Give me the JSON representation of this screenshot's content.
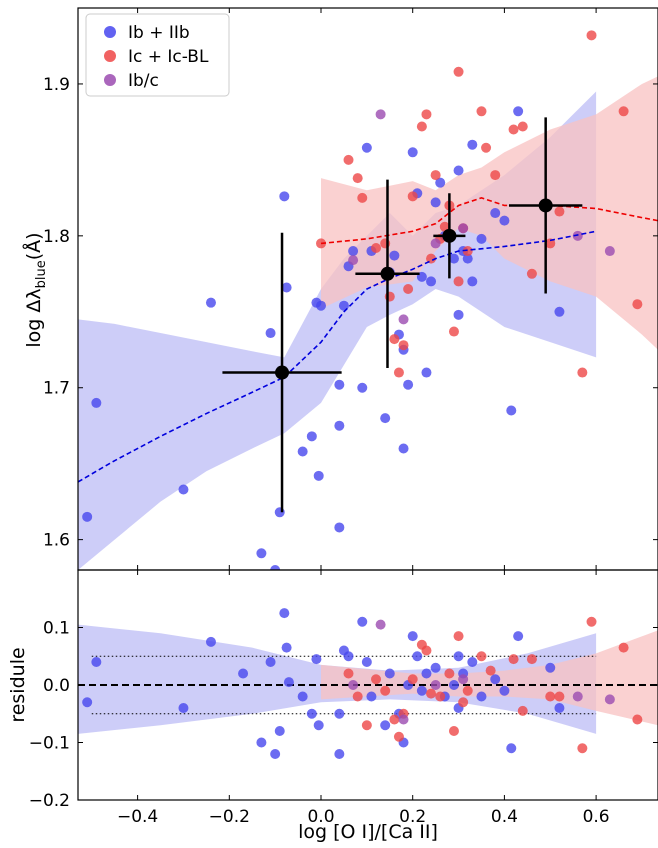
{
  "chart_data": {
    "type": "scatter",
    "colors": {
      "ib_iib": "#4747ee",
      "ic_icbl": "#ee4747",
      "ibc": "#9b4bb0",
      "band_blue": "#c4c4f7",
      "band_red": "#f8c2c2"
    },
    "x_ticks": [
      "−0.4",
      "−0.2",
      "0.0",
      "0.2",
      "0.4",
      "0.6"
    ],
    "x_tick_values": [
      -0.4,
      -0.2,
      0.0,
      0.2,
      0.4,
      0.6
    ],
    "xlim": [
      -0.53,
      0.735
    ],
    "top_panel": {
      "ylim": [
        1.58,
        1.95
      ],
      "y_ticks": [
        "1.6",
        "1.7",
        "1.8",
        "1.9"
      ],
      "y_tick_values": [
        1.6,
        1.7,
        1.8,
        1.9
      ],
      "legend_placement": "top-left",
      "series": [
        {
          "name": "Ib + IIb",
          "color_key": "ib_iib",
          "points": [
            [
              -0.51,
              1.615
            ],
            [
              -0.49,
              1.69
            ],
            [
              -0.3,
              1.633
            ],
            [
              -0.24,
              1.756
            ],
            [
              -0.13,
              1.591
            ],
            [
              -0.11,
              1.736
            ],
            [
              -0.1,
              1.58
            ],
            [
              -0.09,
              1.618
            ],
            [
              -0.08,
              1.826
            ],
            [
              -0.075,
              1.766
            ],
            [
              -0.04,
              1.658
            ],
            [
              -0.02,
              1.668
            ],
            [
              -0.01,
              1.756
            ],
            [
              -0.005,
              1.642
            ],
            [
              0.0,
              1.754
            ],
            [
              0.04,
              1.702
            ],
            [
              0.04,
              1.675
            ],
            [
              0.04,
              1.608
            ],
            [
              0.05,
              1.754
            ],
            [
              0.06,
              1.78
            ],
            [
              0.07,
              1.79
            ],
            [
              0.09,
              1.7
            ],
            [
              0.1,
              1.858
            ],
            [
              0.11,
              1.79
            ],
            [
              0.14,
              1.68
            ],
            [
              0.15,
              1.776
            ],
            [
              0.16,
              1.787
            ],
            [
              0.17,
              1.735
            ],
            [
              0.18,
              1.725
            ],
            [
              0.18,
              1.66
            ],
            [
              0.19,
              1.702
            ],
            [
              0.2,
              1.855
            ],
            [
              0.21,
              1.828
            ],
            [
              0.22,
              1.773
            ],
            [
              0.23,
              1.71
            ],
            [
              0.24,
              1.77
            ],
            [
              0.25,
              1.822
            ],
            [
              0.26,
              1.835
            ],
            [
              0.27,
              1.8
            ],
            [
              0.29,
              1.785
            ],
            [
              0.3,
              1.748
            ],
            [
              0.3,
              1.843
            ],
            [
              0.31,
              1.79
            ],
            [
              0.32,
              1.785
            ],
            [
              0.33,
              1.77
            ],
            [
              0.33,
              1.86
            ],
            [
              0.35,
              1.798
            ],
            [
              0.38,
              1.815
            ],
            [
              0.4,
              1.81
            ],
            [
              0.415,
              1.685
            ],
            [
              0.43,
              1.882
            ],
            [
              0.52,
              1.75
            ]
          ]
        },
        {
          "name": "Ic + Ic-BL",
          "color_key": "ic_icbl",
          "points": [
            [
              0.0,
              1.795
            ],
            [
              0.06,
              1.85
            ],
            [
              0.08,
              1.838
            ],
            [
              0.09,
              1.825
            ],
            [
              0.12,
              1.792
            ],
            [
              0.14,
              1.795
            ],
            [
              0.15,
              1.76
            ],
            [
              0.16,
              1.732
            ],
            [
              0.17,
              1.71
            ],
            [
              0.18,
              1.728
            ],
            [
              0.19,
              1.765
            ],
            [
              0.2,
              1.826
            ],
            [
              0.22,
              1.872
            ],
            [
              0.23,
              1.88
            ],
            [
              0.24,
              1.785
            ],
            [
              0.25,
              1.84
            ],
            [
              0.26,
              1.798
            ],
            [
              0.27,
              1.806
            ],
            [
              0.28,
              1.82
            ],
            [
              0.29,
              1.737
            ],
            [
              0.3,
              1.77
            ],
            [
              0.3,
              1.908
            ],
            [
              0.31,
              1.805
            ],
            [
              0.32,
              1.79
            ],
            [
              0.35,
              1.882
            ],
            [
              0.36,
              1.858
            ],
            [
              0.38,
              1.84
            ],
            [
              0.42,
              1.87
            ],
            [
              0.44,
              1.872
            ],
            [
              0.46,
              1.775
            ],
            [
              0.5,
              1.795
            ],
            [
              0.52,
              1.816
            ],
            [
              0.57,
              1.71
            ],
            [
              0.59,
              1.932
            ],
            [
              0.66,
              1.882
            ],
            [
              0.69,
              1.755
            ]
          ]
        },
        {
          "name": "Ib/c",
          "color_key": "ibc",
          "points": [
            [
              0.07,
              1.784
            ],
            [
              0.13,
              1.88
            ],
            [
              0.18,
              1.745
            ],
            [
              0.25,
              1.795
            ],
            [
              0.31,
              1.805
            ],
            [
              0.56,
              1.8
            ],
            [
              0.63,
              1.79
            ]
          ]
        }
      ],
      "binned_means": [
        {
          "x": -0.085,
          "y": 1.71,
          "xerr": 0.13,
          "yerr": 0.092
        },
        {
          "x": 0.145,
          "y": 1.775,
          "xerr": 0.07,
          "yerr": 0.062
        },
        {
          "x": 0.28,
          "y": 1.8,
          "xerr": 0.035,
          "yerr": 0.028
        },
        {
          "x": 0.49,
          "y": 1.82,
          "xerr": 0.08,
          "yerr": 0.058
        }
      ],
      "trend_blue": {
        "x": [
          -0.53,
          -0.45,
          -0.35,
          -0.25,
          -0.15,
          -0.08,
          0.0,
          0.05,
          0.1,
          0.15,
          0.2,
          0.25,
          0.3,
          0.4,
          0.5,
          0.6
        ],
        "y": [
          1.638,
          1.652,
          1.668,
          1.683,
          1.697,
          1.707,
          1.73,
          1.75,
          1.765,
          1.772,
          1.778,
          1.785,
          1.79,
          1.793,
          1.797,
          1.803
        ],
        "lo": [
          1.58,
          1.6,
          1.625,
          1.645,
          1.66,
          1.67,
          1.69,
          1.715,
          1.74,
          1.748,
          1.755,
          1.765,
          1.76,
          1.74,
          1.73,
          1.72
        ],
        "hi": [
          1.745,
          1.742,
          1.736,
          1.73,
          1.724,
          1.72,
          1.765,
          1.785,
          1.8,
          1.815,
          1.8,
          1.815,
          1.82,
          1.84,
          1.865,
          1.895
        ]
      },
      "trend_red": {
        "x": [
          0.0,
          0.1,
          0.2,
          0.25,
          0.3,
          0.35,
          0.4,
          0.5,
          0.6,
          0.7,
          0.735
        ],
        "y": [
          1.795,
          1.798,
          1.803,
          1.808,
          1.82,
          1.825,
          1.82,
          1.82,
          1.818,
          1.812,
          1.81
        ],
        "lo": [
          1.752,
          1.766,
          1.77,
          1.79,
          1.805,
          1.8,
          1.785,
          1.77,
          1.76,
          1.735,
          1.725
        ],
        "hi": [
          1.838,
          1.83,
          1.836,
          1.83,
          1.84,
          1.845,
          1.855,
          1.87,
          1.88,
          1.9,
          1.905
        ]
      }
    },
    "bottom_panel": {
      "ylim": [
        -0.2,
        0.2
      ],
      "y_ticks": [
        "−0.2",
        "−0.1",
        "0.0",
        "0.1"
      ],
      "y_tick_values": [
        -0.2,
        -0.1,
        0.0,
        0.1
      ],
      "dotted_lines": [
        0.05,
        -0.05
      ],
      "dashed_line": 0.0,
      "series": [
        {
          "name": "Ib + IIb",
          "color_key": "ib_iib",
          "points": [
            [
              -0.51,
              -0.03
            ],
            [
              -0.49,
              0.04
            ],
            [
              -0.3,
              -0.04
            ],
            [
              -0.24,
              0.075
            ],
            [
              -0.17,
              0.02
            ],
            [
              -0.13,
              -0.1
            ],
            [
              -0.11,
              0.04
            ],
            [
              -0.1,
              -0.12
            ],
            [
              -0.09,
              -0.08
            ],
            [
              -0.08,
              0.125
            ],
            [
              -0.075,
              0.065
            ],
            [
              -0.07,
              0.005
            ],
            [
              -0.04,
              -0.02
            ],
            [
              -0.02,
              -0.05
            ],
            [
              -0.01,
              0.045
            ],
            [
              -0.005,
              -0.07
            ],
            [
              0.04,
              -0.12
            ],
            [
              0.04,
              -0.05
            ],
            [
              0.05,
              0.06
            ],
            [
              0.06,
              0.05
            ],
            [
              0.09,
              0.11
            ],
            [
              0.1,
              0.04
            ],
            [
              0.11,
              -0.02
            ],
            [
              0.14,
              -0.07
            ],
            [
              0.15,
              0.02
            ],
            [
              0.17,
              -0.05
            ],
            [
              0.18,
              -0.1
            ],
            [
              0.19,
              0.0
            ],
            [
              0.2,
              0.085
            ],
            [
              0.21,
              0.05
            ],
            [
              0.22,
              -0.01
            ],
            [
              0.23,
              0.02
            ],
            [
              0.25,
              0.03
            ],
            [
              0.27,
              -0.02
            ],
            [
              0.29,
              0.0
            ],
            [
              0.3,
              0.05
            ],
            [
              0.3,
              -0.04
            ],
            [
              0.31,
              0.02
            ],
            [
              0.33,
              0.04
            ],
            [
              0.35,
              -0.02
            ],
            [
              0.38,
              0.01
            ],
            [
              0.4,
              -0.01
            ],
            [
              0.415,
              -0.11
            ],
            [
              0.43,
              0.085
            ],
            [
              0.5,
              0.03
            ],
            [
              0.52,
              -0.04
            ]
          ]
        },
        {
          "name": "Ic + Ic-BL",
          "color_key": "ic_icbl",
          "points": [
            [
              0.06,
              0.02
            ],
            [
              0.08,
              -0.02
            ],
            [
              0.1,
              -0.07
            ],
            [
              0.12,
              0.01
            ],
            [
              0.14,
              -0.01
            ],
            [
              0.16,
              -0.06
            ],
            [
              0.17,
              -0.09
            ],
            [
              0.18,
              -0.05
            ],
            [
              0.2,
              0.01
            ],
            [
              0.22,
              0.07
            ],
            [
              0.23,
              0.06
            ],
            [
              0.24,
              -0.015
            ],
            [
              0.26,
              -0.02
            ],
            [
              0.28,
              0.02
            ],
            [
              0.29,
              -0.08
            ],
            [
              0.3,
              0.085
            ],
            [
              0.31,
              -0.03
            ],
            [
              0.32,
              -0.01
            ],
            [
              0.35,
              0.05
            ],
            [
              0.37,
              0.025
            ],
            [
              0.42,
              0.045
            ],
            [
              0.44,
              -0.045
            ],
            [
              0.46,
              0.045
            ],
            [
              0.5,
              -0.02
            ],
            [
              0.52,
              -0.02
            ],
            [
              0.57,
              -0.11
            ],
            [
              0.59,
              0.11
            ],
            [
              0.66,
              0.065
            ],
            [
              0.69,
              -0.06
            ]
          ]
        },
        {
          "name": "Ib/c",
          "color_key": "ibc",
          "points": [
            [
              0.07,
              0.0
            ],
            [
              0.13,
              0.105
            ],
            [
              0.18,
              -0.06
            ],
            [
              0.25,
              0.0
            ],
            [
              0.31,
              0.01
            ],
            [
              0.56,
              -0.02
            ],
            [
              0.63,
              -0.025
            ]
          ]
        }
      ],
      "band_blue": {
        "x": [
          -0.53,
          -0.35,
          -0.15,
          0.0,
          0.15,
          0.3,
          0.45,
          0.6
        ],
        "lo": [
          -0.085,
          -0.07,
          -0.05,
          -0.03,
          -0.025,
          -0.03,
          -0.05,
          -0.085
        ],
        "hi": [
          0.105,
          0.09,
          0.065,
          0.035,
          0.025,
          0.03,
          0.055,
          0.09
        ]
      },
      "band_red": {
        "x": [
          0.0,
          0.2,
          0.3,
          0.4,
          0.5,
          0.6,
          0.735
        ],
        "lo": [
          -0.025,
          -0.015,
          -0.02,
          -0.02,
          -0.025,
          -0.045,
          -0.07
        ],
        "hi": [
          0.035,
          0.02,
          0.02,
          0.025,
          0.035,
          0.055,
          0.095
        ]
      }
    },
    "legend": [
      "Ib + IIb",
      "Ic + Ic-BL",
      "Ib/c"
    ]
  }
}
